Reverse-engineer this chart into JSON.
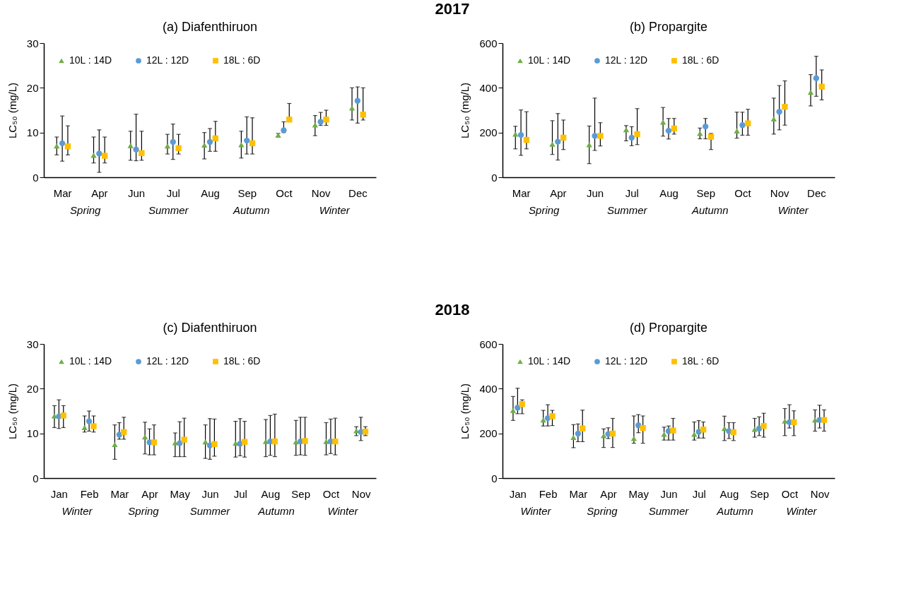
{
  "chart_data": [
    {
      "type": "scatter",
      "title": "(a) Diafenthiruon",
      "ylabel": "LC₅₀ (mg/L)",
      "annotations": [
        "2017",
        "Spring",
        "Summer",
        "Autumn",
        "Winter"
      ],
      "legend": "top left",
      "ylim": [
        0,
        30
      ],
      "yticks": [
        0,
        10,
        20,
        30
      ],
      "categories": [
        "Mar",
        "Apr",
        "Jun",
        "Jul",
        "Aug",
        "Sep",
        "Oct",
        "Nov",
        "Dec"
      ],
      "series": [
        {
          "name": "10L : 14D",
          "color": "#70ad47",
          "marker": "triangle",
          "values": [
            7.0,
            4.9,
            7.1,
            7.0,
            7.2,
            7.3,
            9.4,
            11.7,
            15.5
          ],
          "errors": [
            [
              5.0,
              9.0
            ],
            [
              3.2,
              9.0
            ],
            [
              3.8,
              10.3
            ],
            [
              5.2,
              9.6
            ],
            [
              4.1,
              10.0
            ],
            [
              4.3,
              10.3
            ],
            [
              9.0,
              9.8
            ],
            [
              9.3,
              13.8
            ],
            [
              12.8,
              20.0
            ]
          ]
        },
        {
          "name": "12L : 12D",
          "color": "#5b9bd5",
          "marker": "circle",
          "values": [
            7.6,
            5.3,
            6.2,
            7.9,
            7.9,
            8.2,
            10.5,
            12.4,
            17.1
          ],
          "errors": [
            [
              3.6,
              13.7
            ],
            [
              1.1,
              10.6
            ],
            [
              3.7,
              14.1
            ],
            [
              4.0,
              11.9
            ],
            [
              5.8,
              10.9
            ],
            [
              5.2,
              13.5
            ],
            [
              10.0,
              12.4
            ],
            [
              11.6,
              14.5
            ],
            [
              12.1,
              20.2
            ]
          ]
        },
        {
          "name": "18L : 6D",
          "color": "#ffc000",
          "marker": "square",
          "values": [
            6.9,
            4.8,
            5.4,
            6.5,
            8.7,
            7.6,
            12.9,
            12.9,
            14.0
          ],
          "errors": [
            [
              5.0,
              11.5
            ],
            [
              3.2,
              9.0
            ],
            [
              3.8,
              10.3
            ],
            [
              5.2,
              9.6
            ],
            [
              5.8,
              12.5
            ],
            [
              5.2,
              13.3
            ],
            [
              12.4,
              16.5
            ],
            [
              11.6,
              15.0
            ],
            [
              12.8,
              20.0
            ]
          ]
        }
      ]
    },
    {
      "type": "scatter",
      "title": "(b) Propargite",
      "ylabel": "LC₅₀ (mg/L)",
      "annotations": [
        "Spring",
        "Summer",
        "Autumn",
        "Winter"
      ],
      "legend": "top left",
      "ylim": [
        0,
        600
      ],
      "yticks": [
        0,
        200,
        400,
        600
      ],
      "categories": [
        "Mar",
        "Apr",
        "Jun",
        "Jul",
        "Aug",
        "Sep",
        "Oct",
        "Nov",
        "Dec"
      ],
      "series": [
        {
          "name": "10L : 14D",
          "color": "#70ad47",
          "marker": "triangle",
          "values": [
            193,
            148,
            146,
            213,
            247,
            196,
            207,
            261,
            380
          ],
          "errors": [
            [
              127,
              228
            ],
            [
              102,
              253
            ],
            [
              61,
              229
            ],
            [
              163,
              231
            ],
            [
              184,
              312
            ],
            [
              172,
              220
            ],
            [
              175,
              291
            ],
            [
              193,
              354
            ],
            [
              319,
              459
            ]
          ]
        },
        {
          "name": "12L : 12D",
          "color": "#5b9bd5",
          "marker": "circle",
          "values": [
            189,
            159,
            185,
            177,
            208,
            227,
            233,
            293,
            443
          ],
          "errors": [
            [
              98,
              301
            ],
            [
              77,
              285
            ],
            [
              120,
              354
            ],
            [
              141,
              226
            ],
            [
              171,
              263
            ],
            [
              172,
              263
            ],
            [
              188,
              291
            ],
            [
              212,
              410
            ],
            [
              362,
              541
            ]
          ]
        },
        {
          "name": "18L : 6D",
          "color": "#ffc000",
          "marker": "square",
          "values": [
            167,
            177,
            185,
            193,
            218,
            181,
            241,
            315,
            405
          ],
          "errors": [
            [
              127,
              293
            ],
            [
              124,
              256
            ],
            [
              140,
              244
            ],
            [
              146,
              307
            ],
            [
              193,
              263
            ],
            [
              124,
              196
            ],
            [
              188,
              304
            ],
            [
              233,
              431
            ],
            [
              346,
              480
            ]
          ]
        }
      ]
    },
    {
      "type": "scatter",
      "title": "(c) Diafenthiruon",
      "ylabel": "LC₅₀ (mg/L)",
      "annotations": [
        "2018",
        "Winter",
        "Spring",
        "Summer",
        "Autumn",
        "Winter"
      ],
      "legend": "top left",
      "ylim": [
        0,
        30
      ],
      "yticks": [
        0,
        10,
        20,
        30
      ],
      "categories": [
        "Jan",
        "Feb",
        "Mar",
        "Apr",
        "May",
        "Jun",
        "Jul",
        "Aug",
        "Sep",
        "Oct",
        "Nov"
      ],
      "series": [
        {
          "name": "10L : 14D",
          "color": "#70ad47",
          "marker": "triangle",
          "values": [
            13.9,
            11.3,
            7.5,
            9.2,
            7.9,
            8.1,
            7.8,
            8.2,
            8.1,
            8.2,
            10.6
          ],
          "errors": [
            [
              11.3,
              16.2
            ],
            [
              10.3,
              13.9
            ],
            [
              4.2,
              11.9
            ],
            [
              5.4,
              12.5
            ],
            [
              4.8,
              10.1
            ],
            [
              4.4,
              11.9
            ],
            [
              4.7,
              12.7
            ],
            [
              4.8,
              13.1
            ],
            [
              5.1,
              12.9
            ],
            [
              5.2,
              12.4
            ],
            [
              9.5,
              11.5
            ]
          ]
        },
        {
          "name": "12L : 12D",
          "color": "#5b9bd5",
          "marker": "circle",
          "values": [
            13.8,
            12.7,
            9.7,
            8.0,
            7.8,
            7.3,
            7.7,
            8.2,
            8.2,
            8.2,
            10.3
          ],
          "errors": [
            [
              11.1,
              17.5
            ],
            [
              10.5,
              15.0
            ],
            [
              8.7,
              12.4
            ],
            [
              5.2,
              11.0
            ],
            [
              4.8,
              12.6
            ],
            [
              4.2,
              13.3
            ],
            [
              5.0,
              13.3
            ],
            [
              5.1,
              14.0
            ],
            [
              5.2,
              13.6
            ],
            [
              5.5,
              13.2
            ],
            [
              8.4,
              13.6
            ]
          ]
        },
        {
          "name": "18L : 6D",
          "color": "#ffc000",
          "marker": "square",
          "values": [
            14.0,
            11.6,
            10.3,
            8.0,
            8.6,
            7.6,
            8.1,
            8.2,
            8.3,
            8.2,
            10.4
          ],
          "errors": [
            [
              11.3,
              16.2
            ],
            [
              10.3,
              13.9
            ],
            [
              8.7,
              13.6
            ],
            [
              5.2,
              11.9
            ],
            [
              4.8,
              13.4
            ],
            [
              4.9,
              13.2
            ],
            [
              4.7,
              12.7
            ],
            [
              4.8,
              14.3
            ],
            [
              5.1,
              13.6
            ],
            [
              5.2,
              13.4
            ],
            [
              9.5,
              11.5
            ]
          ]
        }
      ]
    },
    {
      "type": "scatter",
      "title": "(d) Propargite",
      "ylabel": "LC₅₀ (mg/L)",
      "annotations": [
        "Winter",
        "Spring",
        "Summer",
        "Autumn",
        "Winter"
      ],
      "legend": "top left",
      "ylim": [
        0,
        600
      ],
      "yticks": [
        0,
        200,
        400,
        600
      ],
      "categories": [
        "Jan",
        "Feb",
        "Mar",
        "Apr",
        "May",
        "Jun",
        "Jul",
        "Aug",
        "Sep",
        "Oct",
        "Nov"
      ],
      "series": [
        {
          "name": "10L : 14D",
          "color": "#70ad47",
          "marker": "triangle",
          "values": [
            303,
            260,
            182,
            190,
            177,
            196,
            196,
            222,
            218,
            255,
            260
          ],
          "errors": [
            [
              258,
              365
            ],
            [
              233,
              303
            ],
            [
              136,
              239
            ],
            [
              137,
              220
            ],
            [
              156,
              278
            ],
            [
              170,
              228
            ],
            [
              170,
              251
            ],
            [
              168,
              277
            ],
            [
              183,
              267
            ],
            [
              190,
              311
            ],
            [
              210,
              305
            ]
          ]
        },
        {
          "name": "12L : 12D",
          "color": "#5b9bd5",
          "marker": "circle",
          "values": [
            315,
            268,
            199,
            197,
            236,
            210,
            207,
            210,
            222,
            250,
            260
          ],
          "errors": [
            [
              288,
              402
            ],
            [
              233,
              328
            ],
            [
              163,
              242
            ],
            [
              177,
              225
            ],
            [
              203,
              284
            ],
            [
              170,
              233
            ],
            [
              179,
              257
            ],
            [
              177,
              248
            ],
            [
              190,
              274
            ],
            [
              224,
              328
            ],
            [
              224,
              326
            ]
          ]
        },
        {
          "name": "18L : 6D",
          "color": "#ffc000",
          "marker": "square",
          "values": [
            331,
            277,
            222,
            199,
            224,
            213,
            217,
            205,
            233,
            250,
            260
          ],
          "errors": [
            [
              288,
              350
            ],
            [
              235,
              303
            ],
            [
              163,
              304
            ],
            [
              137,
              267
            ],
            [
              156,
              278
            ],
            [
              170,
              267
            ],
            [
              179,
              251
            ],
            [
              168,
              248
            ],
            [
              183,
              290
            ],
            [
              190,
              301
            ],
            [
              210,
              305
            ]
          ]
        }
      ]
    }
  ]
}
